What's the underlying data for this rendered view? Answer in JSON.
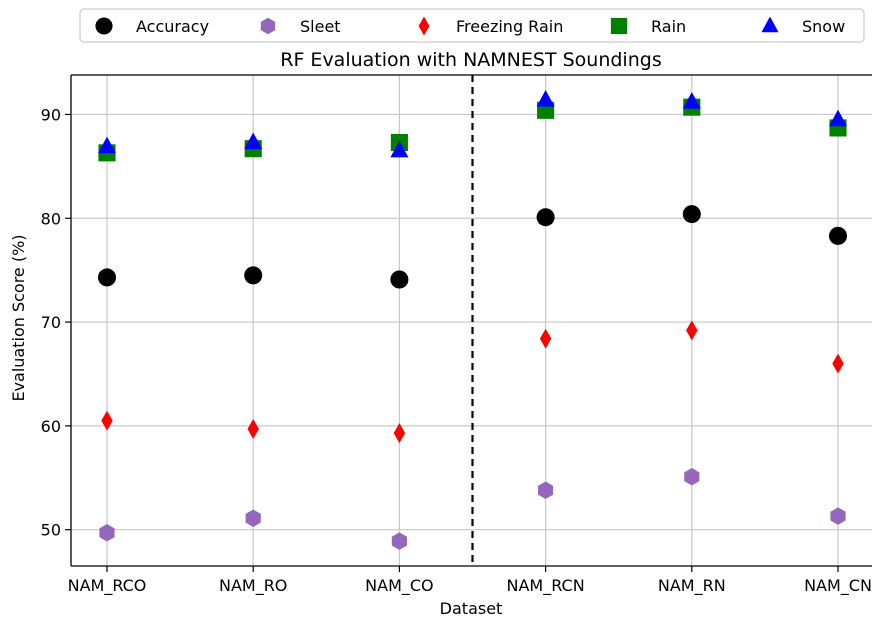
{
  "chart_data": {
    "type": "scatter",
    "title": "RF Evaluation with NAMNEST Soundings",
    "xlabel": "Dataset",
    "ylabel": "Evaluation Score (%)",
    "categories": [
      "NAM_RCO",
      "NAM_RO",
      "NAM_CO",
      "NAM_RCN",
      "NAM_RN",
      "NAM_CN"
    ],
    "ylim": [
      46.5,
      93.8
    ],
    "yticks": [
      50,
      60,
      70,
      80,
      90
    ],
    "grid": true,
    "legend_position": "top",
    "divider_after_category": "NAM_CO",
    "series": [
      {
        "name": "Accuracy",
        "marker": "circle",
        "color": "#000000",
        "values": [
          74.3,
          74.5,
          74.1,
          80.1,
          80.4,
          78.3
        ]
      },
      {
        "name": "Sleet",
        "marker": "hexagon",
        "color": "#9467bd",
        "values": [
          49.7,
          51.1,
          48.9,
          53.8,
          55.1,
          51.3
        ]
      },
      {
        "name": "Freezing Rain",
        "marker": "diamond",
        "color": "#ff0000",
        "values": [
          60.5,
          59.7,
          59.3,
          68.4,
          69.2,
          66.0
        ]
      },
      {
        "name": "Rain",
        "marker": "square",
        "color": "#008000",
        "values": [
          86.3,
          86.7,
          87.3,
          90.4,
          90.7,
          88.7
        ]
      },
      {
        "name": "Snow",
        "marker": "triangle",
        "color": "#0000ff",
        "values": [
          86.9,
          87.3,
          86.5,
          91.4,
          91.2,
          89.5
        ]
      }
    ]
  }
}
